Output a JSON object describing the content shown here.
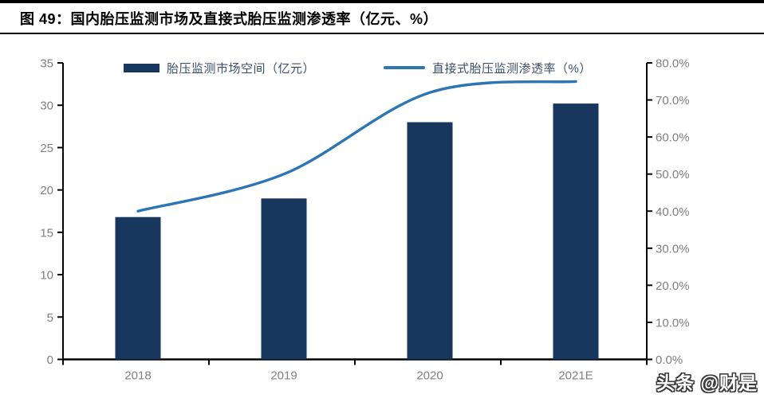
{
  "header": {
    "figure_title": "图 49：国内胎压监测市场及直接式胎压监测渗透率（亿元、%）"
  },
  "legend": {
    "bar_label": "胎压监测市场空间（亿元）",
    "line_label": "直接式胎压监测渗透率（%）"
  },
  "watermark": "头条 @财是",
  "colors": {
    "bar": "#17375e",
    "line": "#2e75b6",
    "axis": "#000000",
    "tick_label": "#7f7f7f",
    "legend_text": "#3f4e68"
  },
  "chart_data": {
    "type": "bar",
    "subtype": "combo-bar-line-dual-axis",
    "title": "国内胎压监测市场及直接式胎压监测渗透率（亿元、%）",
    "categories": [
      "2018",
      "2019",
      "2020",
      "2021E"
    ],
    "series": [
      {
        "name": "胎压监测市场空间（亿元）",
        "type": "bar",
        "axis": "left",
        "values": [
          16.8,
          19.0,
          28.0,
          30.2
        ]
      },
      {
        "name": "直接式胎压监测渗透率（%）",
        "type": "line",
        "axis": "right",
        "values": [
          40.0,
          50.0,
          72.0,
          75.0
        ]
      }
    ],
    "left_axis": {
      "min": 0,
      "max": 35,
      "step": 5,
      "tick_labels": [
        "0",
        "5",
        "10",
        "15",
        "20",
        "25",
        "30",
        "35"
      ]
    },
    "right_axis": {
      "min": 0,
      "max": 80,
      "step": 10,
      "tick_labels": [
        "0.0%",
        "10.0%",
        "20.0%",
        "30.0%",
        "40.0%",
        "50.0%",
        "60.0%",
        "70.0%",
        "80.0%"
      ]
    },
    "xlabel": "",
    "ylabel": "",
    "grid": false,
    "legend_position": "top"
  }
}
